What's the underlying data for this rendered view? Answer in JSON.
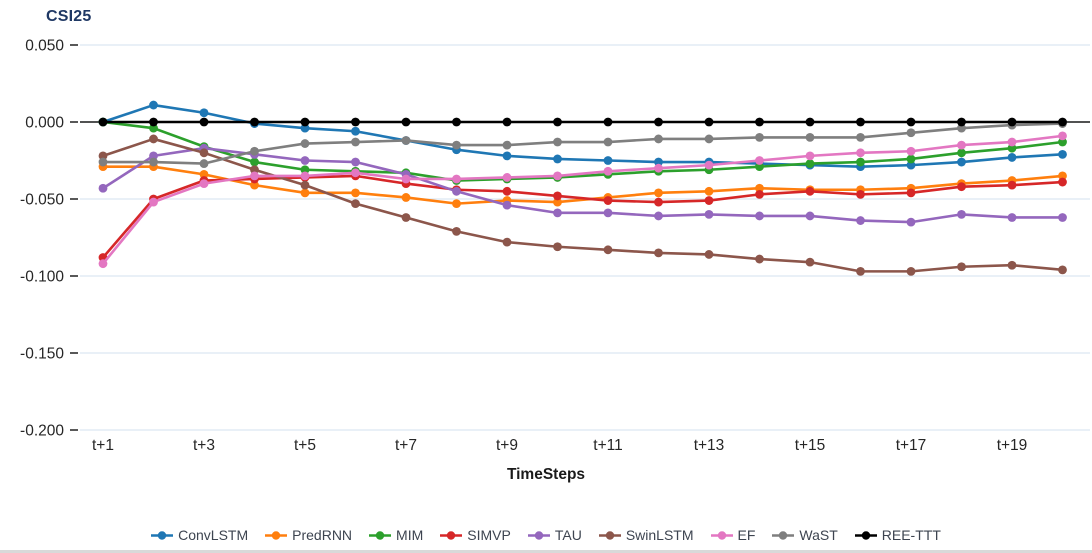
{
  "chart_data": {
    "type": "line",
    "title": "CSI25",
    "xlabel": "TimeSteps",
    "ylabel": "",
    "grid": "horizontal-only",
    "grid_color": "#dce6f2",
    "zero_line_color": "#1a1a1a",
    "legend_position": "bottom",
    "ylim": [
      -0.2,
      0.05
    ],
    "y_tick_labels": [
      "0.050",
      "0.000",
      "-0.050",
      "-0.100",
      "-0.150",
      "-0.200"
    ],
    "categories": [
      "t+1",
      "t+2",
      "t+3",
      "t+4",
      "t+5",
      "t+6",
      "t+7",
      "t+8",
      "t+9",
      "t+10",
      "t+11",
      "t+12",
      "t+13",
      "t+14",
      "t+15",
      "t+16",
      "t+17",
      "t+18",
      "t+19",
      "t+20"
    ],
    "x_axis_shown_labels": [
      "t+1",
      "t+3",
      "t+5",
      "t+7",
      "t+9",
      "t+11",
      "t+13",
      "t+15",
      "t+17",
      "t+19"
    ],
    "series": [
      {
        "name": "ConvLSTM",
        "color": "#1f77b4",
        "values": [
          0.0,
          0.011,
          0.006,
          -0.001,
          -0.004,
          -0.006,
          -0.012,
          -0.018,
          -0.022,
          -0.024,
          -0.025,
          -0.026,
          -0.026,
          -0.027,
          -0.028,
          -0.029,
          -0.028,
          -0.026,
          -0.023,
          -0.021
        ]
      },
      {
        "name": "PredRNN",
        "color": "#ff7f0e",
        "values": [
          -0.029,
          -0.029,
          -0.034,
          -0.041,
          -0.046,
          -0.046,
          -0.049,
          -0.053,
          -0.051,
          -0.052,
          -0.049,
          -0.046,
          -0.045,
          -0.043,
          -0.044,
          -0.044,
          -0.043,
          -0.04,
          -0.038,
          -0.035
        ]
      },
      {
        "name": "MIM",
        "color": "#2ca02c",
        "values": [
          0.0,
          -0.004,
          -0.016,
          -0.026,
          -0.031,
          -0.032,
          -0.033,
          -0.038,
          -0.037,
          -0.036,
          -0.034,
          -0.032,
          -0.031,
          -0.029,
          -0.027,
          -0.026,
          -0.024,
          -0.02,
          -0.017,
          -0.013
        ]
      },
      {
        "name": "SIMVP",
        "color": "#d62728",
        "values": [
          -0.088,
          -0.05,
          -0.038,
          -0.037,
          -0.036,
          -0.035,
          -0.04,
          -0.044,
          -0.045,
          -0.048,
          -0.051,
          -0.052,
          -0.051,
          -0.047,
          -0.045,
          -0.047,
          -0.046,
          -0.042,
          -0.041,
          -0.039
        ]
      },
      {
        "name": "TAU",
        "color": "#9467bd",
        "values": [
          -0.043,
          -0.022,
          -0.017,
          -0.021,
          -0.025,
          -0.026,
          -0.034,
          -0.045,
          -0.054,
          -0.059,
          -0.059,
          -0.061,
          -0.06,
          -0.061,
          -0.061,
          -0.064,
          -0.065,
          -0.06,
          -0.062,
          -0.062
        ]
      },
      {
        "name": "SwinLSTM",
        "color": "#8c564b",
        "values": [
          -0.022,
          -0.011,
          -0.02,
          -0.031,
          -0.041,
          -0.053,
          -0.062,
          -0.071,
          -0.078,
          -0.081,
          -0.083,
          -0.085,
          -0.086,
          -0.089,
          -0.091,
          -0.097,
          -0.097,
          -0.094,
          -0.093,
          -0.096
        ]
      },
      {
        "name": "EF",
        "color": "#e377c2",
        "values": [
          -0.092,
          -0.052,
          -0.04,
          -0.035,
          -0.035,
          -0.033,
          -0.037,
          -0.037,
          -0.036,
          -0.035,
          -0.032,
          -0.03,
          -0.028,
          -0.025,
          -0.022,
          -0.02,
          -0.019,
          -0.015,
          -0.013,
          -0.009
        ]
      },
      {
        "name": "WaST",
        "color": "#7f7f7f",
        "values": [
          -0.026,
          -0.026,
          -0.027,
          -0.019,
          -0.014,
          -0.013,
          -0.012,
          -0.015,
          -0.015,
          -0.013,
          -0.013,
          -0.011,
          -0.011,
          -0.01,
          -0.01,
          -0.01,
          -0.007,
          -0.004,
          -0.002,
          -0.001
        ]
      },
      {
        "name": "REE-TTT",
        "color": "#000000",
        "values": [
          0.0,
          0.0,
          0.0,
          0.0,
          0.0,
          0.0,
          0.0,
          0.0,
          0.0,
          0.0,
          0.0,
          0.0,
          0.0,
          0.0,
          0.0,
          0.0,
          0.0,
          0.0,
          0.0,
          0.0
        ]
      }
    ]
  }
}
